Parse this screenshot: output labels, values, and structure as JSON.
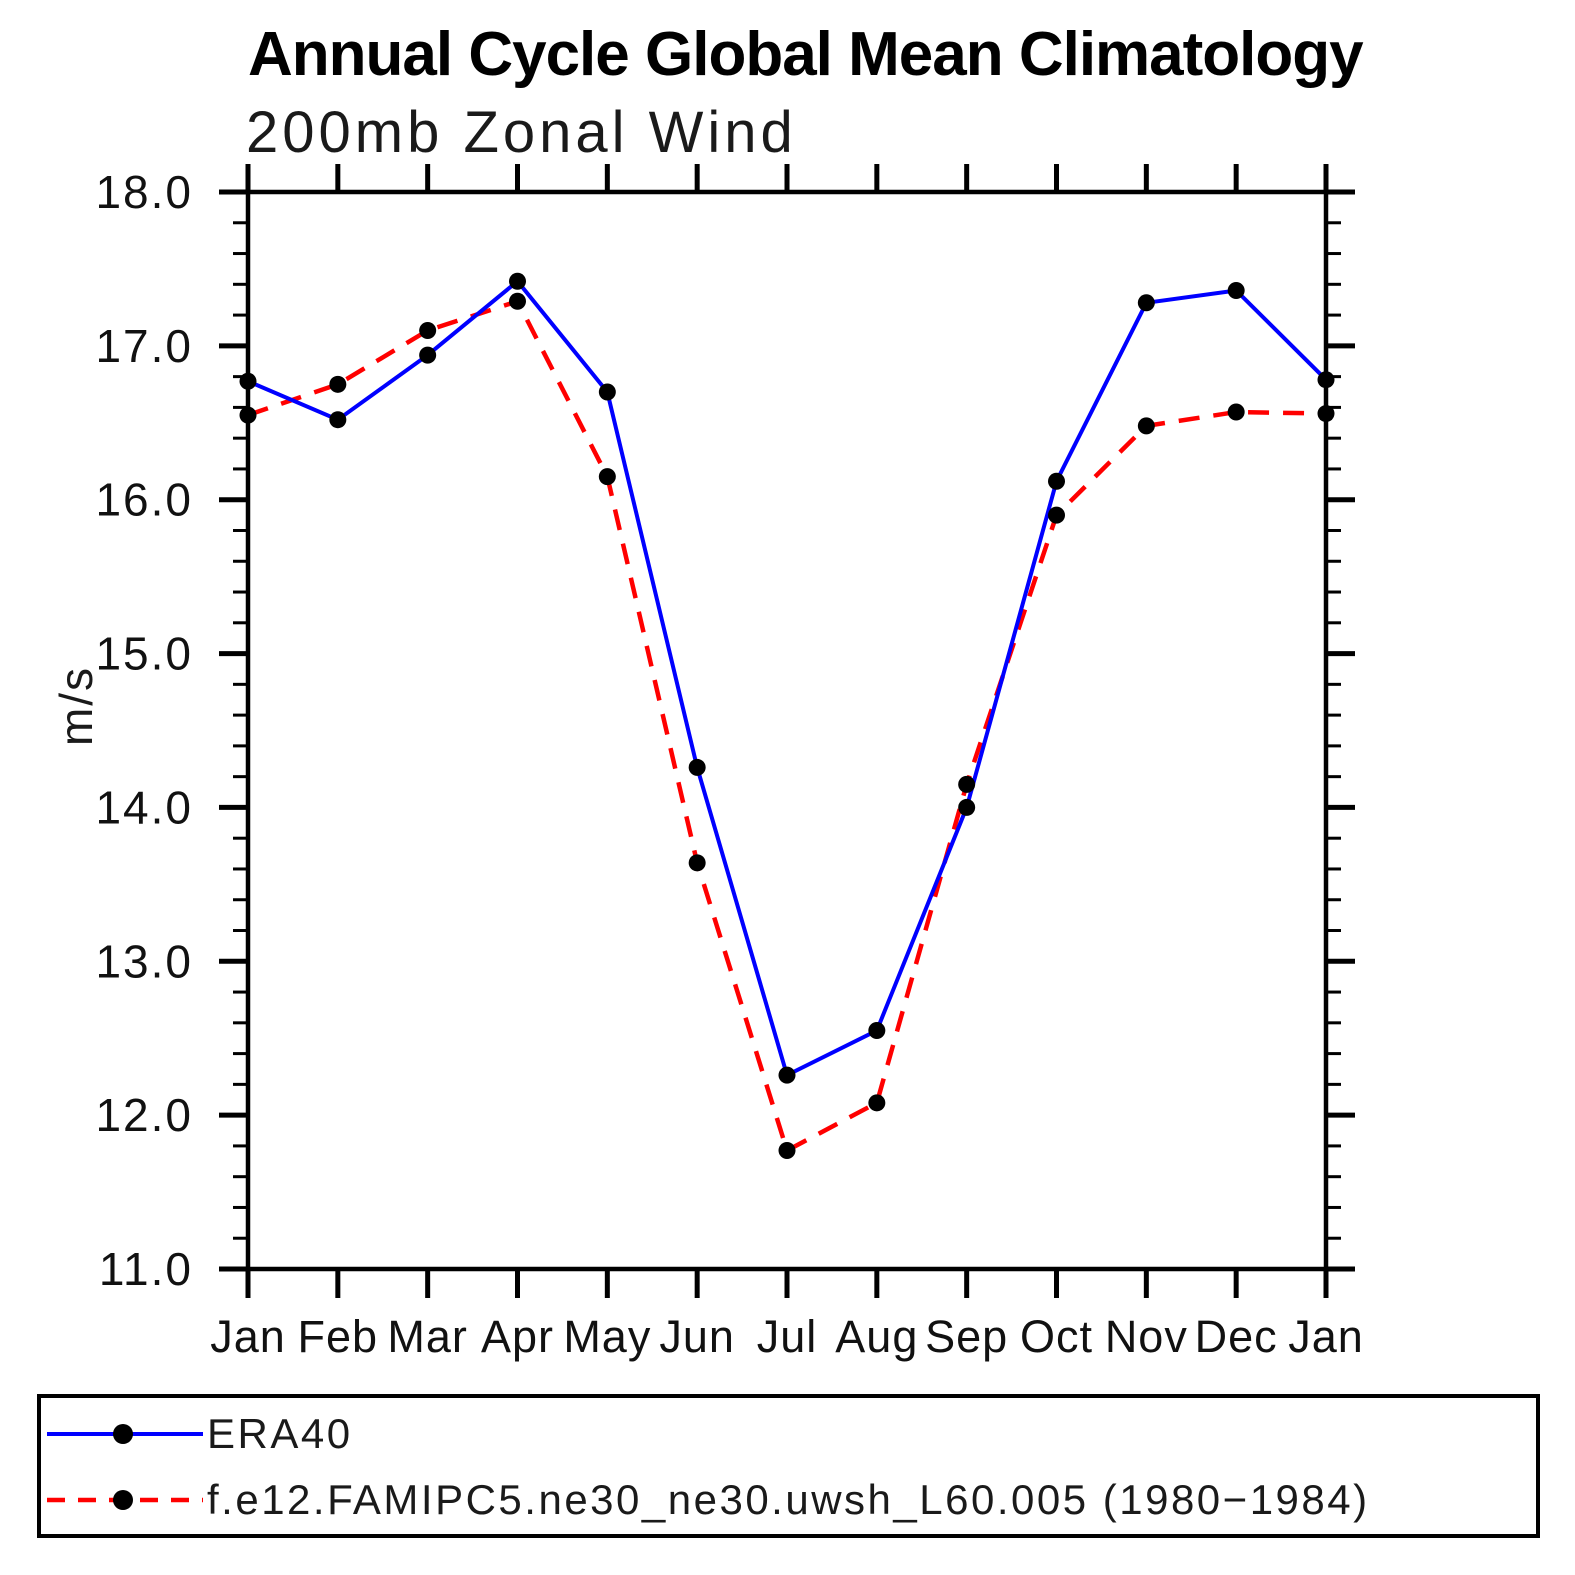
{
  "title": "Annual Cycle Global Mean Climatology",
  "subtitle": "200mb Zonal Wind",
  "colors": {
    "era40_line": "#0000ff",
    "model_line": "#ff0000",
    "marker": "#000000",
    "axis": "#000000"
  },
  "chart_data": {
    "type": "line",
    "title": "Annual Cycle Global Mean Climatology",
    "subtitle": "200mb Zonal Wind",
    "xlabel": "",
    "ylabel": "m/s",
    "categories": [
      "Jan",
      "Feb",
      "Mar",
      "Apr",
      "May",
      "Jun",
      "Jul",
      "Aug",
      "Sep",
      "Oct",
      "Nov",
      "Dec",
      "Jan"
    ],
    "series": [
      {
        "name": "ERA40",
        "color": "#0000ff",
        "line_style": "solid",
        "marker": "filled-black-circle",
        "values": [
          16.77,
          16.52,
          16.94,
          17.42,
          16.7,
          14.26,
          12.26,
          12.55,
          14.0,
          16.12,
          17.28,
          17.36,
          16.78
        ]
      },
      {
        "name": "f.e12.FAMIPC5.ne30_ne30.uwsh_L60.005 (1980−1984)",
        "color": "#ff0000",
        "line_style": "dashed",
        "marker": "filled-black-circle",
        "values": [
          16.55,
          16.75,
          17.1,
          17.29,
          16.15,
          13.64,
          11.77,
          12.08,
          14.15,
          15.9,
          16.48,
          16.57,
          16.56
        ]
      }
    ],
    "marker_color": "#000000",
    "ylim": [
      11.0,
      18.0
    ],
    "ytick_labels": [
      "11.0",
      "12.0",
      "13.0",
      "14.0",
      "15.0",
      "16.0",
      "17.0",
      "18.0"
    ],
    "yminor_step": 0.2,
    "grid": false,
    "tick_direction": "out",
    "legend_position": "bottom-box"
  }
}
